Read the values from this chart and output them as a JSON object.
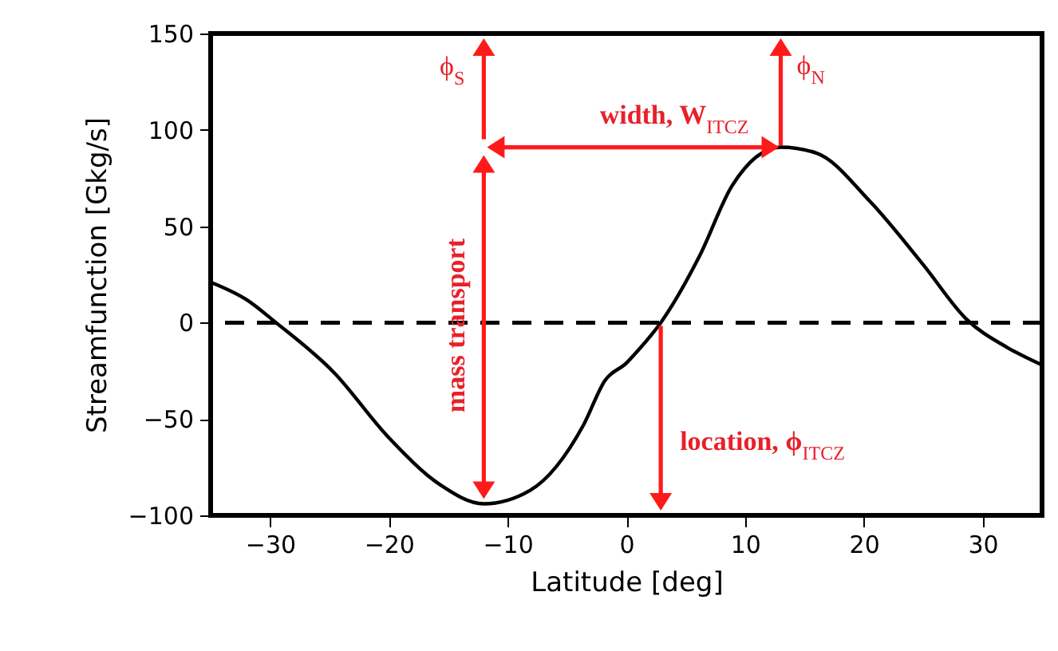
{
  "chart_data": {
    "type": "line",
    "xlabel": "Latitude [deg]",
    "ylabel": "Streamfunction [Gkg/s]",
    "xlim": [
      -35,
      35
    ],
    "ylim": [
      -100,
      150
    ],
    "xticks": [
      {
        "value": -30,
        "label": "−30"
      },
      {
        "value": -20,
        "label": "−20"
      },
      {
        "value": -10,
        "label": "−10"
      },
      0,
      10,
      20,
      30
    ],
    "yticks": [
      {
        "value": -100,
        "label": "−100"
      },
      {
        "value": -50,
        "label": "−50"
      },
      0,
      50,
      100,
      150
    ],
    "grid": false,
    "marker": "none",
    "line_style": "solid",
    "series": [
      {
        "color": "#000000",
        "x": [
          -35,
          -32,
          -29.5,
          -24.6,
          -20.1,
          -15.7,
          -12,
          -8.1,
          -3.6,
          -1.8,
          0,
          0.9,
          2.9,
          6.2,
          8.9,
          13,
          16,
          20.5,
          25,
          28.6,
          32.1,
          35
        ],
        "values": [
          21,
          12,
          0,
          -26,
          -59,
          -84,
          -94,
          -87,
          -53,
          -30,
          -21,
          -15,
          0,
          35,
          71,
          91,
          88,
          63,
          30,
          2,
          -13,
          -22
        ]
      }
    ],
    "ref_lines": [
      {
        "axis": "y",
        "value": 0,
        "color": "#000000",
        "line_style": "dashed"
      }
    ],
    "annotations": [
      "ϕ$_{S}$",
      {
        "text": "width, W$_{ITCZ}$",
        "x": 13,
        "y": 91
      },
      {
        "text": "ϕ$_{N}$",
        "x": 13,
        "y": 91
      },
      "mass transport",
      "location, ϕ$_{ITCZ}$"
    ]
  }
}
